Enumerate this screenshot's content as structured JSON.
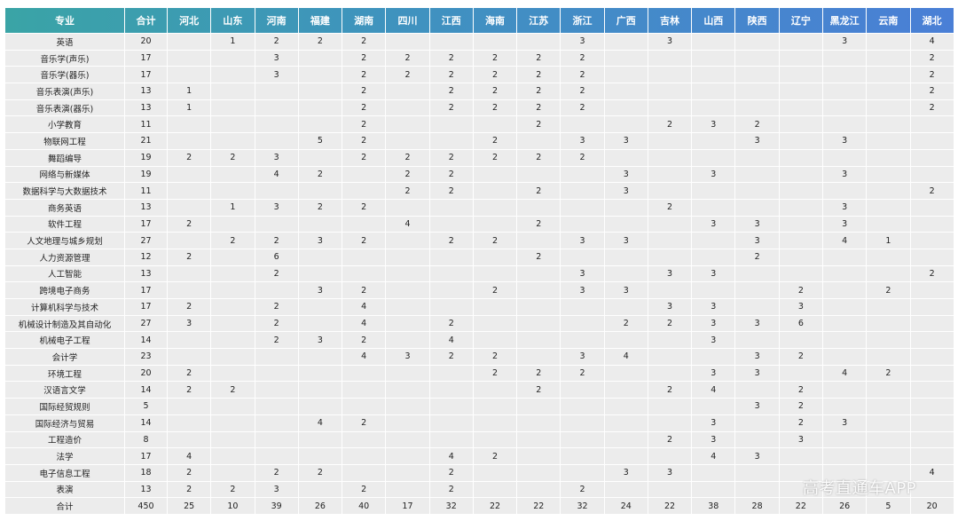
{
  "table": {
    "header": [
      "专业",
      "合计",
      "河北",
      "山东",
      "河南",
      "福建",
      "湖南",
      "四川",
      "江西",
      "海南",
      "江苏",
      "浙江",
      "广西",
      "吉林",
      "山西",
      "陕西",
      "辽宁",
      "黑龙江",
      "云南",
      "湖北"
    ],
    "rows": [
      [
        "英语",
        20,
        null,
        1,
        2,
        2,
        2,
        null,
        null,
        null,
        null,
        3,
        null,
        3,
        null,
        null,
        null,
        3,
        null,
        4
      ],
      [
        "音乐学(声乐)",
        17,
        null,
        null,
        3,
        null,
        2,
        2,
        2,
        2,
        2,
        2,
        null,
        null,
        null,
        null,
        null,
        null,
        null,
        2
      ],
      [
        "音乐学(器乐)",
        17,
        null,
        null,
        3,
        null,
        2,
        2,
        2,
        2,
        2,
        2,
        null,
        null,
        null,
        null,
        null,
        null,
        null,
        2
      ],
      [
        "音乐表演(声乐)",
        13,
        1,
        null,
        null,
        null,
        2,
        null,
        2,
        2,
        2,
        2,
        null,
        null,
        null,
        null,
        null,
        null,
        null,
        2
      ],
      [
        "音乐表演(器乐)",
        13,
        1,
        null,
        null,
        null,
        2,
        null,
        2,
        2,
        2,
        2,
        null,
        null,
        null,
        null,
        null,
        null,
        null,
        2
      ],
      [
        "小学教育",
        11,
        null,
        null,
        null,
        null,
        2,
        null,
        null,
        null,
        2,
        null,
        null,
        2,
        3,
        2,
        null,
        null,
        null,
        null
      ],
      [
        "物联网工程",
        21,
        null,
        null,
        null,
        5,
        2,
        null,
        null,
        2,
        null,
        3,
        3,
        null,
        null,
        3,
        null,
        3,
        null,
        null
      ],
      [
        "舞蹈编导",
        19,
        2,
        2,
        3,
        null,
        2,
        2,
        2,
        2,
        2,
        2,
        null,
        null,
        null,
        null,
        null,
        null,
        null,
        null
      ],
      [
        "网络与新媒体",
        19,
        null,
        null,
        4,
        2,
        null,
        2,
        2,
        null,
        null,
        null,
        3,
        null,
        3,
        null,
        null,
        3,
        null,
        null
      ],
      [
        "数据科学与大数据技术",
        11,
        null,
        null,
        null,
        null,
        null,
        2,
        2,
        null,
        2,
        null,
        3,
        null,
        null,
        null,
        null,
        null,
        null,
        2
      ],
      [
        "商务英语",
        13,
        null,
        1,
        3,
        2,
        2,
        null,
        null,
        null,
        null,
        null,
        null,
        2,
        null,
        null,
        null,
        3,
        null,
        null
      ],
      [
        "软件工程",
        17,
        2,
        null,
        null,
        null,
        null,
        4,
        null,
        null,
        2,
        null,
        null,
        null,
        3,
        3,
        null,
        3,
        null,
        null
      ],
      [
        "人文地理与城乡规划",
        27,
        null,
        2,
        2,
        3,
        2,
        null,
        2,
        2,
        null,
        3,
        3,
        null,
        null,
        3,
        null,
        4,
        1,
        null
      ],
      [
        "人力资源管理",
        12,
        2,
        null,
        6,
        null,
        null,
        null,
        null,
        null,
        2,
        null,
        null,
        null,
        null,
        2,
        null,
        null,
        null,
        null
      ],
      [
        "人工智能",
        13,
        null,
        null,
        2,
        null,
        null,
        null,
        null,
        null,
        null,
        3,
        null,
        3,
        3,
        null,
        null,
        null,
        null,
        2
      ],
      [
        "跨境电子商务",
        17,
        null,
        null,
        null,
        3,
        2,
        null,
        null,
        2,
        null,
        3,
        3,
        null,
        null,
        null,
        2,
        null,
        2,
        null
      ],
      [
        "计算机科学与技术",
        17,
        2,
        null,
        2,
        null,
        4,
        null,
        null,
        null,
        null,
        null,
        null,
        3,
        3,
        null,
        3,
        null,
        null,
        null
      ],
      [
        "机械设计制造及其自动化",
        27,
        3,
        null,
        2,
        null,
        4,
        null,
        2,
        null,
        null,
        null,
        2,
        2,
        3,
        3,
        6,
        null,
        null,
        null
      ],
      [
        "机械电子工程",
        14,
        null,
        null,
        2,
        3,
        2,
        null,
        4,
        null,
        null,
        null,
        null,
        null,
        3,
        null,
        null,
        null,
        null,
        null
      ],
      [
        "会计学",
        23,
        null,
        null,
        null,
        null,
        4,
        3,
        2,
        2,
        null,
        3,
        4,
        null,
        null,
        3,
        2,
        null,
        null,
        null
      ],
      [
        "环境工程",
        20,
        2,
        null,
        null,
        null,
        null,
        null,
        null,
        2,
        2,
        2,
        null,
        null,
        3,
        3,
        null,
        4,
        2,
        null
      ],
      [
        "汉语言文学",
        14,
        2,
        2,
        null,
        null,
        null,
        null,
        null,
        null,
        2,
        null,
        null,
        2,
        4,
        null,
        2,
        null,
        null,
        null
      ],
      [
        "国际经贸规则",
        5,
        null,
        null,
        null,
        null,
        null,
        null,
        null,
        null,
        null,
        null,
        null,
        null,
        null,
        3,
        2,
        null,
        null,
        null
      ],
      [
        "国际经济与贸易",
        14,
        null,
        null,
        null,
        4,
        2,
        null,
        null,
        null,
        null,
        null,
        null,
        null,
        3,
        null,
        2,
        3,
        null,
        null
      ],
      [
        "工程造价",
        8,
        null,
        null,
        null,
        null,
        null,
        null,
        null,
        null,
        null,
        null,
        null,
        2,
        3,
        null,
        3,
        null,
        null,
        null
      ],
      [
        "法学",
        17,
        4,
        null,
        null,
        null,
        null,
        null,
        4,
        2,
        null,
        null,
        null,
        null,
        4,
        3,
        null,
        null,
        null,
        null
      ],
      [
        "电子信息工程",
        18,
        2,
        null,
        2,
        2,
        null,
        null,
        2,
        null,
        null,
        null,
        3,
        3,
        null,
        null,
        null,
        null,
        null,
        4
      ],
      [
        "表演",
        13,
        2,
        2,
        3,
        null,
        2,
        null,
        2,
        null,
        null,
        2,
        null,
        null,
        null,
        null,
        null,
        null,
        null,
        null
      ],
      [
        "合计",
        450,
        25,
        10,
        39,
        26,
        40,
        17,
        32,
        22,
        22,
        32,
        24,
        22,
        38,
        28,
        22,
        26,
        5,
        20
      ]
    ]
  },
  "watermark": "高考直通车APP"
}
